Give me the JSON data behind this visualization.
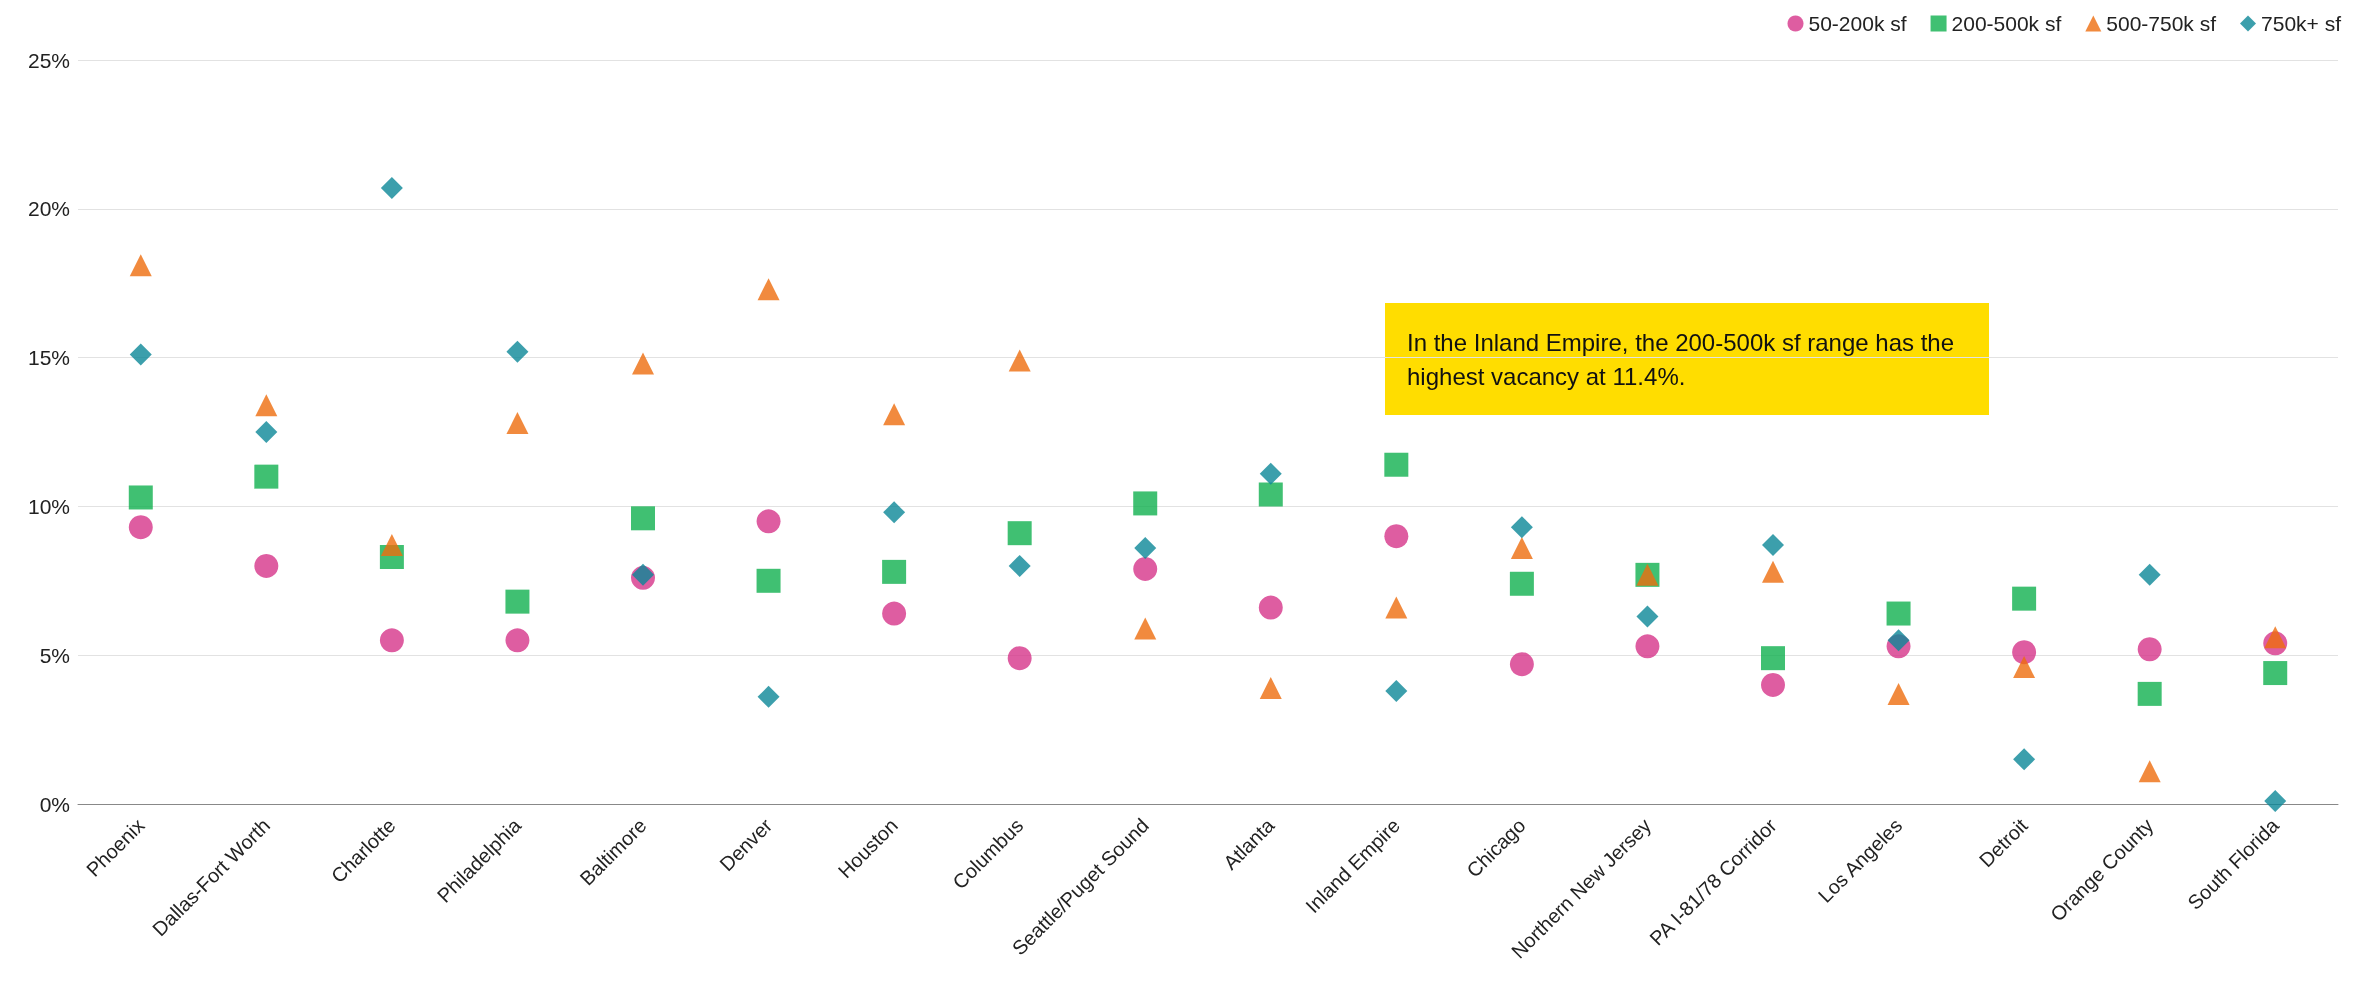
{
  "chart_data": {
    "type": "scatter",
    "categories": [
      "Phoenix",
      "Dallas-Fort Worth",
      "Charlotte",
      "Philadelphia",
      "Baltimore",
      "Denver",
      "Houston",
      "Columbus",
      "Seattle/Puget Sound",
      "Atlanta",
      "Inland Empire",
      "Chicago",
      "Northern New Jersey",
      "PA I-81/78 Corridor",
      "Los Angeles",
      "Detroit",
      "Orange County",
      "South Florida"
    ],
    "series": [
      {
        "name": "50-200k sf",
        "color": "#d6348a",
        "marker": "circle",
        "values": [
          9.3,
          8.0,
          5.5,
          5.5,
          7.6,
          9.5,
          6.4,
          4.9,
          7.9,
          6.6,
          9.0,
          4.7,
          5.3,
          4.0,
          5.3,
          5.1,
          5.2,
          5.4
        ]
      },
      {
        "name": "200-500k sf",
        "color": "#10b04f",
        "marker": "square",
        "values": [
          10.3,
          11.0,
          8.3,
          6.8,
          9.6,
          7.5,
          7.8,
          9.1,
          10.1,
          10.4,
          11.4,
          7.4,
          7.7,
          4.9,
          6.4,
          6.9,
          3.7,
          4.4
        ]
      },
      {
        "name": "500-750k sf",
        "color": "#ee6d0e",
        "marker": "triangle",
        "values": [
          18.1,
          13.4,
          8.7,
          12.8,
          14.8,
          17.3,
          13.1,
          14.9,
          5.9,
          3.9,
          6.6,
          8.6,
          7.7,
          7.8,
          3.7,
          4.6,
          1.1,
          5.6
        ]
      },
      {
        "name": "750k+ sf",
        "color": "#0b8797",
        "marker": "diamond",
        "values": [
          15.1,
          12.5,
          20.7,
          15.2,
          7.7,
          3.6,
          9.8,
          8.0,
          8.6,
          11.1,
          3.8,
          9.3,
          6.3,
          8.7,
          5.5,
          1.5,
          7.7,
          0.1
        ]
      }
    ],
    "ylim": [
      0,
      25
    ],
    "yticks": [
      {
        "value": 0,
        "label": "0%"
      },
      {
        "value": 5,
        "label": "5%"
      },
      {
        "value": 10,
        "label": "10%"
      },
      {
        "value": 15,
        "label": "15%"
      },
      {
        "value": 20,
        "label": "20%"
      },
      {
        "value": 25,
        "label": "25%"
      }
    ],
    "grid": "y",
    "legend": "top right",
    "annotations": [
      "In the Inland Empire, the 200-500k sf range has the highest vacancy at 11.4%."
    ]
  }
}
